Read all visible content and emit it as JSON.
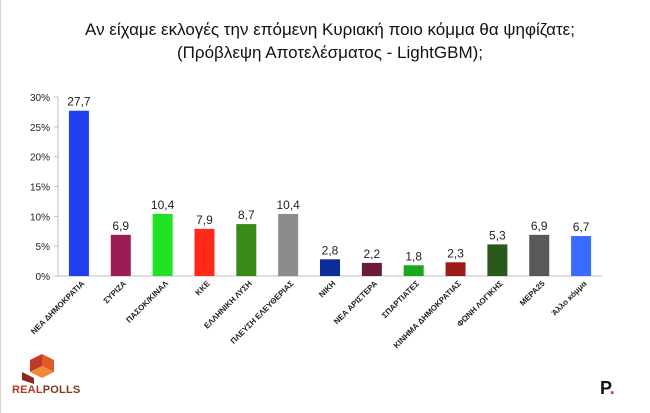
{
  "title_line1": "Αν είχαμε εκλογές την επόμενη Κυριακή ποιο κόμμα θα ψηφίζατε;",
  "title_line2": "(Πρόβλεψη Αποτελέσματος - LightGBM);",
  "logo": {
    "part1": "REAL",
    "part2": "POLLS"
  },
  "brand": {
    "letter": "P",
    "dot": "."
  },
  "chart_data": {
    "type": "bar",
    "title": "Αν είχαμε εκλογές την επόμενη Κυριακή ποιο κόμμα θα ψηφίζατε; (Πρόβλεψη Αποτελέσματος - LightGBM);",
    "categories": [
      "ΝΕΑ ΔΗΜΟΚΡΑΤΙΑ",
      "ΣΥΡΙΖΑ",
      "ΠΑΣΟΚ/ΚΙΝΑΛ",
      "ΚΚΕ",
      "ΕΛΛΗΝΙΚΗ ΛΥΣΗ",
      "ΠΛΕΥΣΗ ΕΛΕΥΘΕΡΙΑΣ",
      "ΝΙΚΗ",
      "ΝΕΑ ΑΡΙΣΤΕΡΑ",
      "ΣΠΑΡΤΙΑΤΕΣ",
      "ΚΙΝΗΜΑ ΔΗΜΟΚΡΑΤΙΑΣ",
      "ΦΩΝΗ ΛΟΓΙΚΗΣ",
      "ΜΕΡΑ25",
      "Άλλο κόμμα"
    ],
    "values": [
      27.7,
      6.9,
      10.4,
      7.9,
      8.7,
      10.4,
      2.8,
      2.2,
      1.8,
      2.3,
      5.3,
      6.9,
      6.7
    ],
    "data_labels": [
      "27,7",
      "6,9",
      "10,4",
      "7,9",
      "8,7",
      "10,4",
      "2,8",
      "2,2",
      "1,8",
      "2,3",
      "5,3",
      "6,9",
      "6,7"
    ],
    "colors": [
      "#1f3ff0",
      "#9b1b55",
      "#22e022",
      "#ff2a1a",
      "#3a8a1a",
      "#8c8c8c",
      "#0d2d9a",
      "#6a1a3a",
      "#1aa81a",
      "#9e1a1a",
      "#2a5a1a",
      "#595959",
      "#3a6bff"
    ],
    "yticks": [
      "0%",
      "5%",
      "10%",
      "15%",
      "20%",
      "25%",
      "30%"
    ],
    "ylim": [
      0,
      30
    ],
    "ylabel": "",
    "xlabel": "",
    "grid": false,
    "legend": "none"
  }
}
